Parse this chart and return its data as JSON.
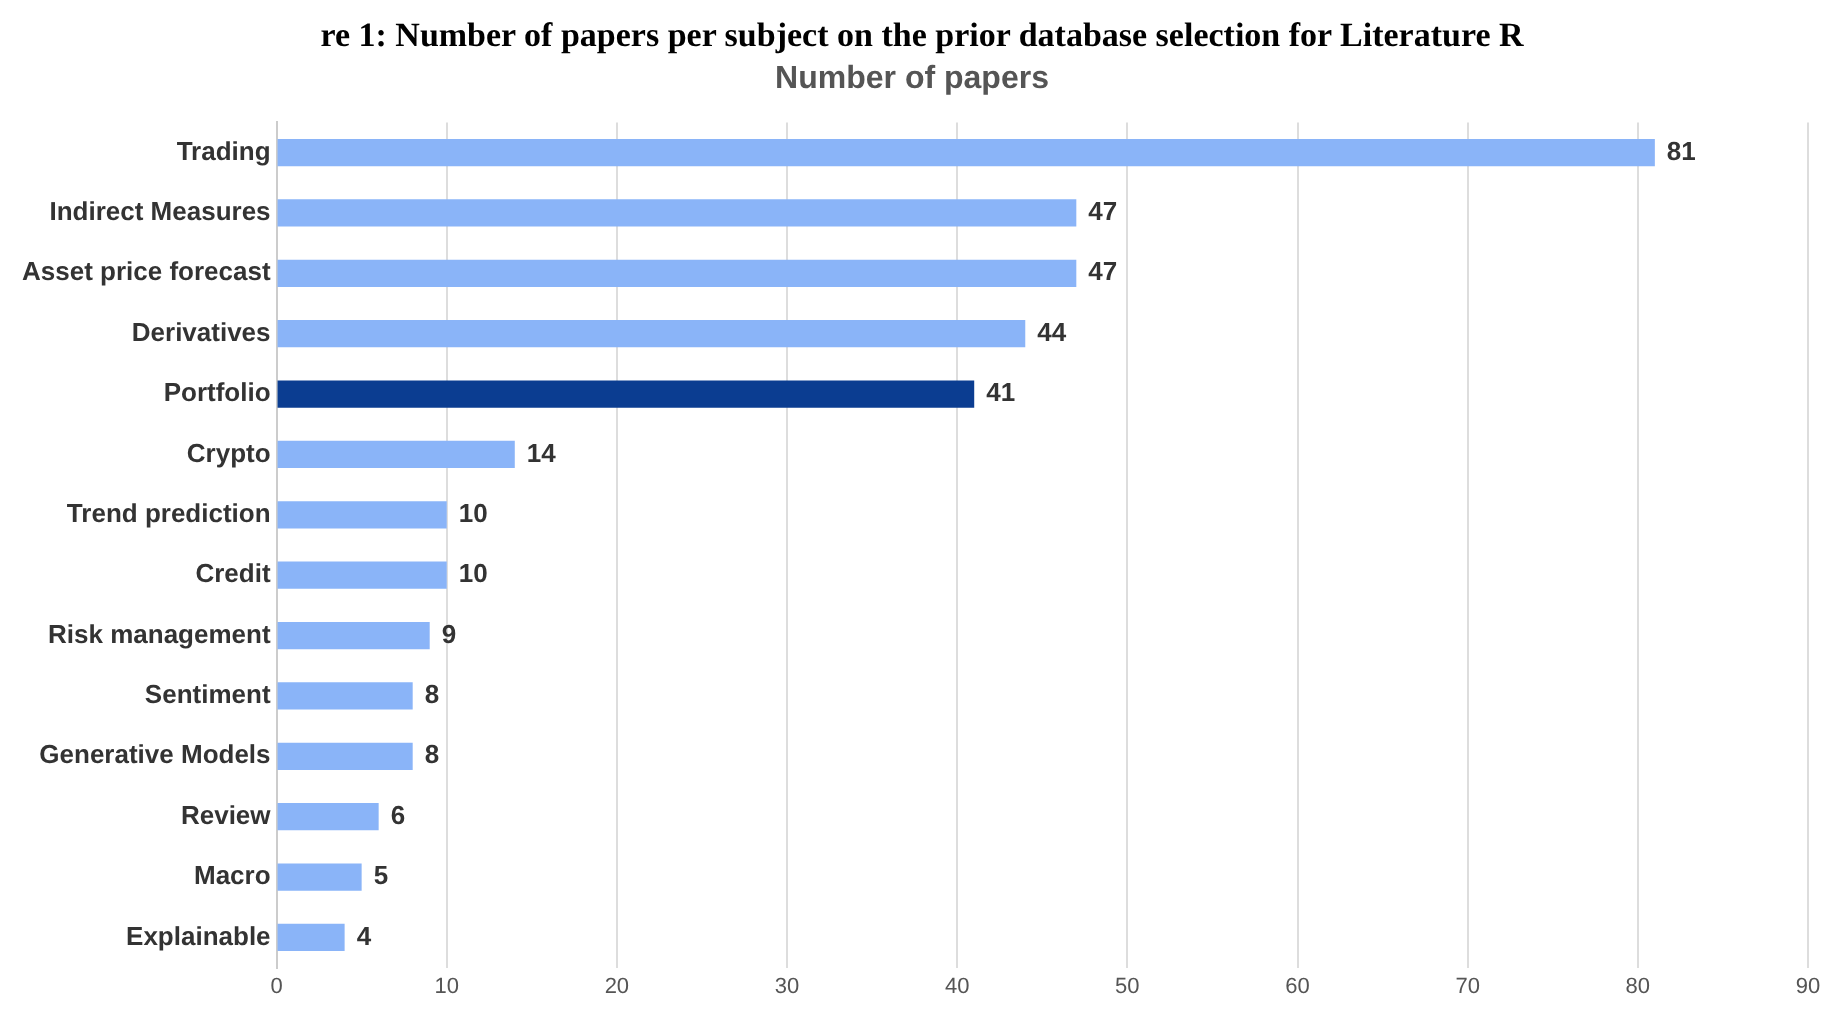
{
  "chart_data": {
    "type": "bar",
    "orientation": "horizontal",
    "title": "Number of papers",
    "annotations": [
      "re 1: Number of papers per subject on the prior database selection for Literature R"
    ],
    "categories": [
      "Trading",
      "Indirect Measures",
      "Asset price forecast",
      "Derivatives",
      "Portfolio",
      "Crypto",
      "Trend prediction",
      "Credit",
      "Risk management",
      "Sentiment",
      "Generative Models",
      "Review",
      "Macro",
      "Explainable"
    ],
    "values": [
      81,
      47,
      47,
      44,
      41,
      14,
      10,
      10,
      9,
      8,
      8,
      6,
      5,
      4
    ],
    "colors": [
      "#8ab4f8",
      "#8ab4f8",
      "#8ab4f8",
      "#8ab4f8",
      "#0b3d91",
      "#8ab4f8",
      "#8ab4f8",
      "#8ab4f8",
      "#8ab4f8",
      "#8ab4f8",
      "#8ab4f8",
      "#8ab4f8",
      "#8ab4f8",
      "#8ab4f8"
    ],
    "xlim": [
      0,
      90
    ],
    "xticks": [
      0,
      10,
      20,
      30,
      40,
      50,
      60,
      70,
      80,
      90
    ],
    "grid": "x",
    "data_labels": true,
    "legend": false
  }
}
